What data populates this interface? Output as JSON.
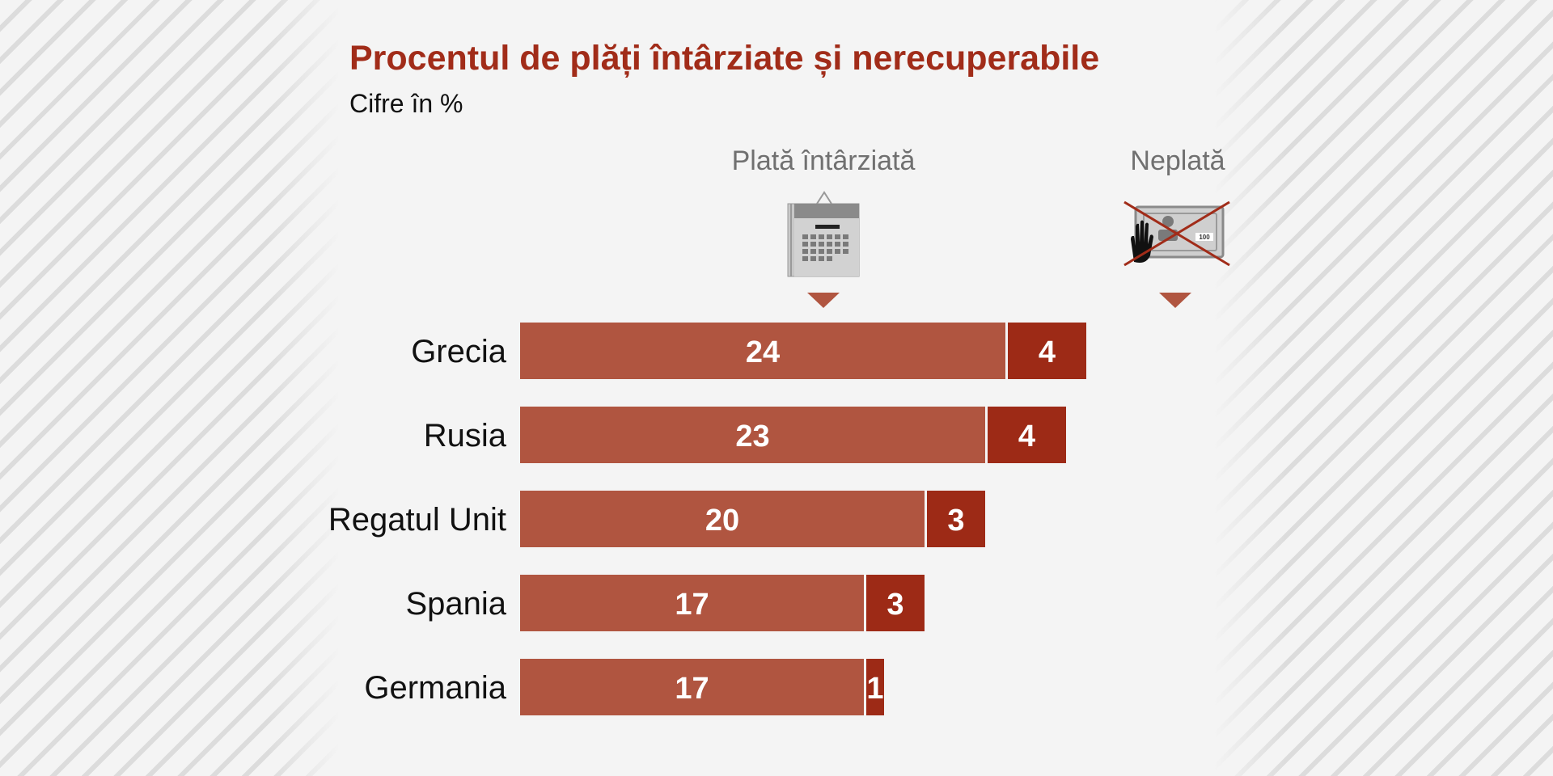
{
  "colors": {
    "late": "#b05540",
    "unpaid": "#9d2a16",
    "title": "#a12c19",
    "arrow": "#b05540"
  },
  "icons": {
    "late": "calendar-icon",
    "unpaid": "crossed-out-payment-icon"
  },
  "chart_data": {
    "type": "bar",
    "orientation": "horizontal",
    "stacked": true,
    "title": "Procentul de plăți întârziate și nerecuperabile",
    "subtitle": "Cifre în %",
    "categories": [
      "Grecia",
      "Rusia",
      "Regatul Unit",
      "Spania",
      "Germania"
    ],
    "series": [
      {
        "name": "Plată întârziată",
        "values": [
          24,
          23,
          20,
          17,
          17
        ]
      },
      {
        "name": "Neplată",
        "values": [
          4,
          4,
          3,
          3,
          1
        ]
      }
    ],
    "xlim": [
      0,
      28
    ],
    "grid": false,
    "legend": "top"
  }
}
